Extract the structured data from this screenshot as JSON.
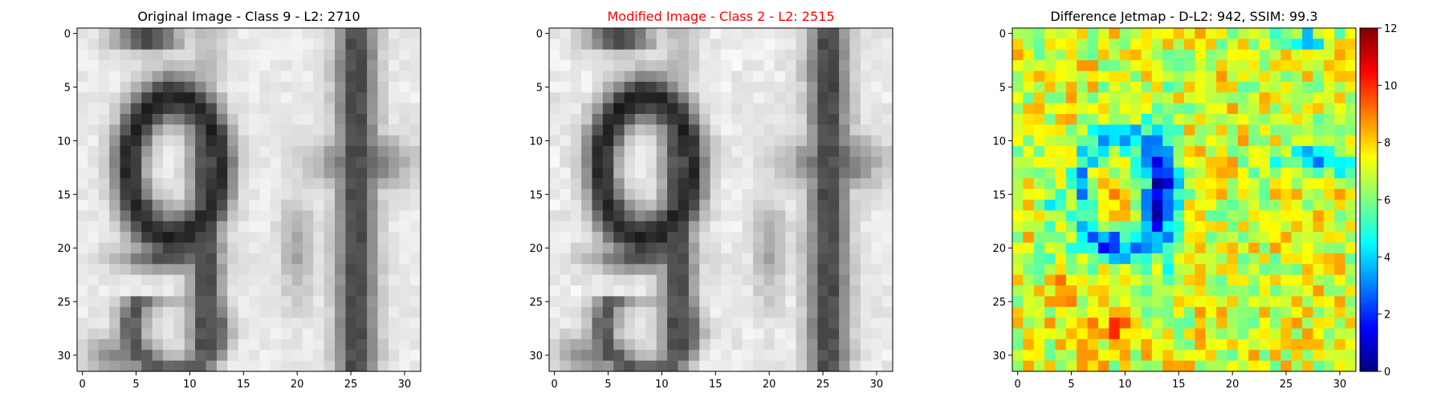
{
  "chart_data": [
    {
      "type": "heatmap",
      "title": "Original Image - Class 9 - L2: 2710",
      "title_color": "#000000",
      "colormap": "gray",
      "xticks": [
        0,
        5,
        10,
        15,
        20,
        25,
        30
      ],
      "yticks": [
        0,
        5,
        10,
        15,
        20,
        25,
        30
      ],
      "xlim": [
        -0.5,
        31.5
      ],
      "ylim": [
        31.5,
        -0.5
      ],
      "grid_size": [
        32,
        32
      ],
      "pattern": "digits-91",
      "perturbation": 0
    },
    {
      "type": "heatmap",
      "title": "Modified Image - Class 2 - L2: 2515",
      "title_color": "#ff0000",
      "colormap": "gray",
      "xticks": [
        0,
        5,
        10,
        15,
        20,
        25,
        30
      ],
      "yticks": [
        0,
        5,
        10,
        15,
        20,
        25,
        30
      ],
      "xlim": [
        -0.5,
        31.5
      ],
      "ylim": [
        31.5,
        -0.5
      ],
      "grid_size": [
        32,
        32
      ],
      "pattern": "digits-91",
      "perturbation": 1
    },
    {
      "type": "heatmap",
      "title": "Difference Jetmap - D-L2: 942, SSIM: 99.3",
      "title_color": "#000000",
      "colormap": "jet",
      "xticks": [
        0,
        5,
        10,
        15,
        20,
        25,
        30
      ],
      "yticks": [
        0,
        5,
        10,
        15,
        20,
        25,
        30
      ],
      "xlim": [
        -0.5,
        31.5
      ],
      "ylim": [
        31.5,
        -0.5
      ],
      "grid_size": [
        32,
        32
      ],
      "pattern": "difference",
      "colorbar": {
        "range": [
          0,
          12
        ],
        "ticks": [
          0,
          2,
          4,
          6,
          8,
          10,
          12
        ]
      }
    }
  ]
}
